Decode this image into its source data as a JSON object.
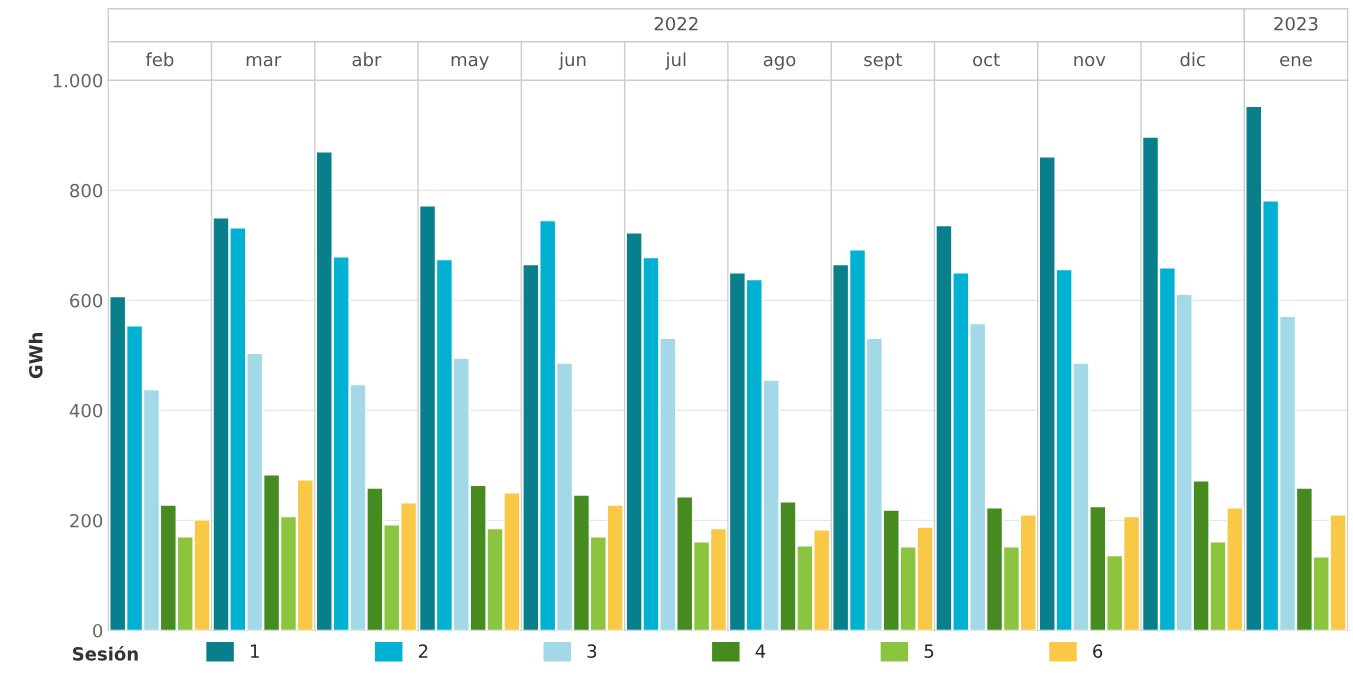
{
  "chart_data": {
    "type": "bar",
    "ylabel": "GWh",
    "legend_title": "Sesión",
    "categories": [
      "feb",
      "mar",
      "abr",
      "may",
      "jun",
      "jul",
      "ago",
      "sept",
      "oct",
      "nov",
      "dic",
      "ene"
    ],
    "annotations": [
      "2022",
      "2023"
    ],
    "series": [
      {
        "name": "1",
        "color": "#0a7f8c",
        "values": [
          607,
          750,
          870,
          772,
          665,
          723,
          650,
          665,
          736,
          861,
          897,
          953
        ]
      },
      {
        "name": "2",
        "color": "#00b1d2",
        "values": [
          554,
          732,
          679,
          674,
          745,
          678,
          638,
          692,
          650,
          656,
          659,
          781
        ]
      },
      {
        "name": "3",
        "color": "#a3d9e6",
        "values": [
          438,
          504,
          447,
          495,
          486,
          531,
          455,
          531,
          558,
          486,
          611,
          571
        ]
      },
      {
        "name": "4",
        "color": "#458b1f",
        "values": [
          228,
          283,
          259,
          264,
          246,
          243,
          234,
          219,
          223,
          225,
          272,
          259
        ]
      },
      {
        "name": "5",
        "color": "#8bc540",
        "values": [
          170,
          207,
          192,
          185,
          170,
          161,
          154,
          152,
          152,
          136,
          161,
          134
        ]
      },
      {
        "name": "6",
        "color": "#f9c846",
        "values": [
          201,
          274,
          232,
          250,
          228,
          185,
          183,
          188,
          210,
          207,
          223,
          210
        ]
      }
    ],
    "ylim": [
      0,
      1000
    ],
    "yticks": [
      0,
      200,
      400,
      600,
      800,
      {
        "value": 1000,
        "label": "1.000"
      }
    ],
    "grid": "y",
    "legend": "bottom"
  }
}
